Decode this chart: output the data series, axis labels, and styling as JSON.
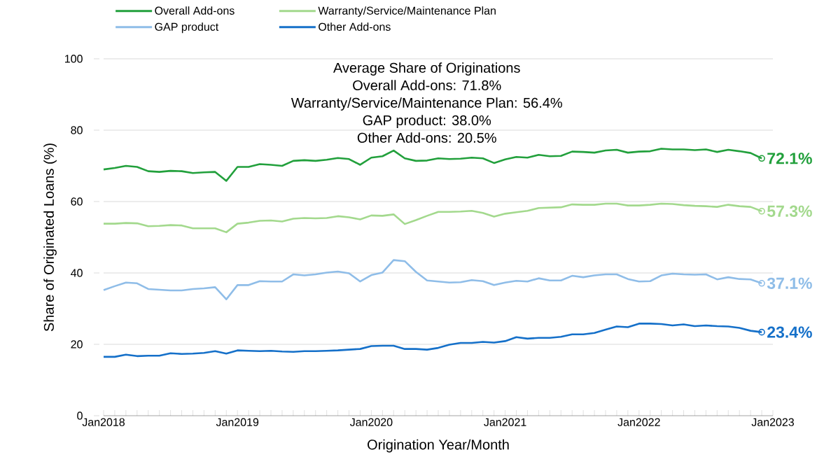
{
  "chart_data": {
    "type": "line",
    "xlabel": "Origination Year/Month",
    "ylabel": "Share of Originated Loans (%)",
    "annotations": [
      "Average Share of Originations",
      "Overall Add-ons: 71.8%",
      "Warranty/Service/Maintenance Plan: 56.4%",
      "GAP product: 38.0%",
      "Other Add-ons: 20.5%"
    ],
    "x": [
      "2018-01",
      "2018-02",
      "2018-03",
      "2018-04",
      "2018-05",
      "2018-06",
      "2018-07",
      "2018-08",
      "2018-09",
      "2018-10",
      "2018-11",
      "2018-12",
      "2019-01",
      "2019-02",
      "2019-03",
      "2019-04",
      "2019-05",
      "2019-06",
      "2019-07",
      "2019-08",
      "2019-09",
      "2019-10",
      "2019-11",
      "2019-12",
      "2020-01",
      "2020-02",
      "2020-03",
      "2020-04",
      "2020-05",
      "2020-06",
      "2020-07",
      "2020-08",
      "2020-09",
      "2020-10",
      "2020-11",
      "2020-12",
      "2021-01",
      "2021-02",
      "2021-03",
      "2021-04",
      "2021-05",
      "2021-06",
      "2021-07",
      "2021-08",
      "2021-09",
      "2021-10",
      "2021-11",
      "2021-12",
      "2022-01",
      "2022-02",
      "2022-03",
      "2022-04",
      "2022-05",
      "2022-06",
      "2022-07",
      "2022-08",
      "2022-09",
      "2022-10",
      "2022-11",
      "2022-12"
    ],
    "series": [
      {
        "name": "Overall Add-ons",
        "color": "#22a03c",
        "values": [
          69.0,
          69.4,
          70.0,
          69.7,
          68.5,
          68.3,
          68.6,
          68.5,
          68.0,
          68.2,
          68.3,
          65.8,
          69.7,
          69.7,
          70.5,
          70.3,
          70.0,
          71.4,
          71.6,
          71.4,
          71.7,
          72.2,
          71.9,
          70.3,
          72.3,
          72.7,
          74.3,
          72.1,
          71.4,
          71.5,
          72.1,
          71.9,
          72.0,
          72.3,
          72.1,
          70.8,
          71.8,
          72.5,
          72.3,
          73.1,
          72.7,
          72.8,
          74.0,
          73.9,
          73.7,
          74.3,
          74.5,
          73.7,
          74.0,
          74.1,
          74.8,
          74.6,
          74.6,
          74.4,
          74.6,
          73.9,
          74.5,
          74.1,
          73.6,
          72.1
        ],
        "value_labels": [
          null,
          null,
          null,
          null,
          null,
          null,
          null,
          null,
          null,
          null,
          null,
          null,
          null,
          null,
          null,
          null,
          null,
          null,
          null,
          null,
          null,
          null,
          null,
          null,
          null,
          null,
          null,
          null,
          null,
          null,
          null,
          null,
          null,
          null,
          null,
          null,
          null,
          null,
          null,
          null,
          null,
          null,
          null,
          null,
          null,
          null,
          null,
          null,
          null,
          null,
          null,
          null,
          null,
          null,
          null,
          null,
          null,
          null,
          null,
          "72.1%"
        ]
      },
      {
        "name": "Warranty/Service/Maintenance Plan",
        "color": "#a3d98d",
        "values": [
          53.8,
          53.8,
          54.0,
          53.9,
          53.1,
          53.2,
          53.4,
          53.3,
          52.5,
          52.5,
          52.5,
          51.4,
          53.8,
          54.1,
          54.6,
          54.7,
          54.4,
          55.2,
          55.4,
          55.3,
          55.4,
          55.9,
          55.6,
          55.0,
          56.1,
          56.0,
          56.4,
          53.7,
          54.8,
          56.0,
          57.1,
          57.1,
          57.2,
          57.4,
          56.8,
          55.8,
          56.6,
          57.0,
          57.4,
          58.2,
          58.3,
          58.4,
          59.2,
          59.1,
          59.1,
          59.4,
          59.4,
          58.9,
          58.9,
          59.1,
          59.4,
          59.3,
          59.0,
          58.8,
          58.7,
          58.5,
          59.1,
          58.7,
          58.5,
          57.3
        ],
        "value_labels": [
          null,
          null,
          null,
          null,
          null,
          null,
          null,
          null,
          null,
          null,
          null,
          null,
          null,
          null,
          null,
          null,
          null,
          null,
          null,
          null,
          null,
          null,
          null,
          null,
          null,
          null,
          null,
          null,
          null,
          null,
          null,
          null,
          null,
          null,
          null,
          null,
          null,
          null,
          null,
          null,
          null,
          null,
          null,
          null,
          null,
          null,
          null,
          null,
          null,
          null,
          null,
          null,
          null,
          null,
          null,
          null,
          null,
          null,
          null,
          "57.3%"
        ]
      },
      {
        "name": "GAP product",
        "color": "#8fbde8",
        "values": [
          35.2,
          36.3,
          37.3,
          37.1,
          35.5,
          35.3,
          35.1,
          35.1,
          35.5,
          35.7,
          36.0,
          32.6,
          36.6,
          36.6,
          37.7,
          37.6,
          37.6,
          39.6,
          39.3,
          39.6,
          40.1,
          40.4,
          39.9,
          37.6,
          39.4,
          40.1,
          43.6,
          43.3,
          40.3,
          37.9,
          37.6,
          37.3,
          37.4,
          38.0,
          37.7,
          36.6,
          37.3,
          37.8,
          37.6,
          38.5,
          37.9,
          37.9,
          39.2,
          38.8,
          39.3,
          39.6,
          39.6,
          38.3,
          37.6,
          37.7,
          39.3,
          39.8,
          39.6,
          39.5,
          39.6,
          38.2,
          38.8,
          38.3,
          38.2,
          37.1
        ],
        "value_labels": [
          null,
          null,
          null,
          null,
          null,
          null,
          null,
          null,
          null,
          null,
          null,
          null,
          null,
          null,
          null,
          null,
          null,
          null,
          null,
          null,
          null,
          null,
          null,
          null,
          null,
          null,
          null,
          null,
          null,
          null,
          null,
          null,
          null,
          null,
          null,
          null,
          null,
          null,
          null,
          null,
          null,
          null,
          null,
          null,
          null,
          null,
          null,
          null,
          null,
          null,
          null,
          null,
          null,
          null,
          null,
          null,
          null,
          null,
          null,
          "37.1%"
        ]
      },
      {
        "name": "Other Add-ons",
        "color": "#1570c9",
        "values": [
          16.5,
          16.5,
          17.1,
          16.7,
          16.8,
          16.8,
          17.5,
          17.3,
          17.4,
          17.6,
          18.1,
          17.4,
          18.3,
          18.2,
          18.1,
          18.2,
          18.0,
          17.9,
          18.1,
          18.1,
          18.2,
          18.3,
          18.5,
          18.7,
          19.5,
          19.6,
          19.6,
          18.7,
          18.7,
          18.5,
          19.0,
          19.9,
          20.4,
          20.4,
          20.7,
          20.5,
          20.9,
          22.0,
          21.6,
          21.8,
          21.8,
          22.1,
          22.8,
          22.8,
          23.2,
          24.1,
          25.0,
          24.8,
          25.8,
          25.8,
          25.7,
          25.3,
          25.6,
          25.1,
          25.3,
          25.1,
          25.0,
          24.6,
          23.8,
          23.4
        ],
        "value_labels": [
          null,
          null,
          null,
          null,
          null,
          null,
          null,
          null,
          null,
          null,
          null,
          null,
          null,
          null,
          null,
          null,
          null,
          null,
          null,
          null,
          null,
          null,
          null,
          null,
          null,
          null,
          null,
          null,
          null,
          null,
          null,
          null,
          null,
          null,
          null,
          null,
          null,
          null,
          null,
          null,
          null,
          null,
          null,
          null,
          null,
          null,
          null,
          null,
          null,
          null,
          null,
          null,
          null,
          null,
          null,
          null,
          null,
          null,
          null,
          "23.4%"
        ]
      }
    ],
    "xlim": [
      "2018-01",
      "2023-01"
    ],
    "xticks": [
      {
        "value": "2018-01",
        "label": "Jan2018"
      },
      {
        "value": "2018-02",
        "label": null
      },
      {
        "value": "2018-03",
        "label": null
      },
      {
        "value": "2018-04",
        "label": null
      },
      {
        "value": "2018-05",
        "label": null
      },
      {
        "value": "2018-06",
        "label": null
      },
      {
        "value": "2018-07",
        "label": null
      },
      {
        "value": "2018-08",
        "label": null
      },
      {
        "value": "2018-09",
        "label": null
      },
      {
        "value": "2018-10",
        "label": null
      },
      {
        "value": "2018-11",
        "label": null
      },
      {
        "value": "2018-12",
        "label": null
      },
      {
        "value": "2019-01",
        "label": "Jan2019"
      },
      {
        "value": "2019-02",
        "label": null
      },
      {
        "value": "2019-03",
        "label": null
      },
      {
        "value": "2019-04",
        "label": null
      },
      {
        "value": "2019-05",
        "label": null
      },
      {
        "value": "2019-06",
        "label": null
      },
      {
        "value": "2019-07",
        "label": null
      },
      {
        "value": "2019-08",
        "label": null
      },
      {
        "value": "2019-09",
        "label": null
      },
      {
        "value": "2019-10",
        "label": null
      },
      {
        "value": "2019-11",
        "label": null
      },
      {
        "value": "2019-12",
        "label": null
      },
      {
        "value": "2020-01",
        "label": "Jan2020"
      },
      {
        "value": "2020-02",
        "label": null
      },
      {
        "value": "2020-03",
        "label": null
      },
      {
        "value": "2020-04",
        "label": null
      },
      {
        "value": "2020-05",
        "label": null
      },
      {
        "value": "2020-06",
        "label": null
      },
      {
        "value": "2020-07",
        "label": null
      },
      {
        "value": "2020-08",
        "label": null
      },
      {
        "value": "2020-09",
        "label": null
      },
      {
        "value": "2020-10",
        "label": null
      },
      {
        "value": "2020-11",
        "label": null
      },
      {
        "value": "2020-12",
        "label": null
      },
      {
        "value": "2021-01",
        "label": "Jan2021"
      },
      {
        "value": "2021-02",
        "label": null
      },
      {
        "value": "2021-03",
        "label": null
      },
      {
        "value": "2021-04",
        "label": null
      },
      {
        "value": "2021-05",
        "label": null
      },
      {
        "value": "2021-06",
        "label": null
      },
      {
        "value": "2021-07",
        "label": null
      },
      {
        "value": "2021-08",
        "label": null
      },
      {
        "value": "2021-09",
        "label": null
      },
      {
        "value": "2021-10",
        "label": null
      },
      {
        "value": "2021-11",
        "label": null
      },
      {
        "value": "2021-12",
        "label": null
      },
      {
        "value": "2022-01",
        "label": "Jan2022"
      },
      {
        "value": "2022-02",
        "label": null
      },
      {
        "value": "2022-03",
        "label": null
      },
      {
        "value": "2022-04",
        "label": null
      },
      {
        "value": "2022-05",
        "label": null
      },
      {
        "value": "2022-06",
        "label": null
      },
      {
        "value": "2022-07",
        "label": null
      },
      {
        "value": "2022-08",
        "label": null
      },
      {
        "value": "2022-09",
        "label": null
      },
      {
        "value": "2022-10",
        "label": null
      },
      {
        "value": "2022-11",
        "label": null
      },
      {
        "value": "2022-12",
        "label": null
      },
      {
        "value": "2023-01",
        "label": "Jan2023"
      }
    ],
    "ylim": [
      0,
      100
    ],
    "yticks": [
      0,
      20,
      40,
      60,
      80,
      100
    ],
    "grid": "y",
    "legend": "top",
    "line_style": "solid"
  }
}
